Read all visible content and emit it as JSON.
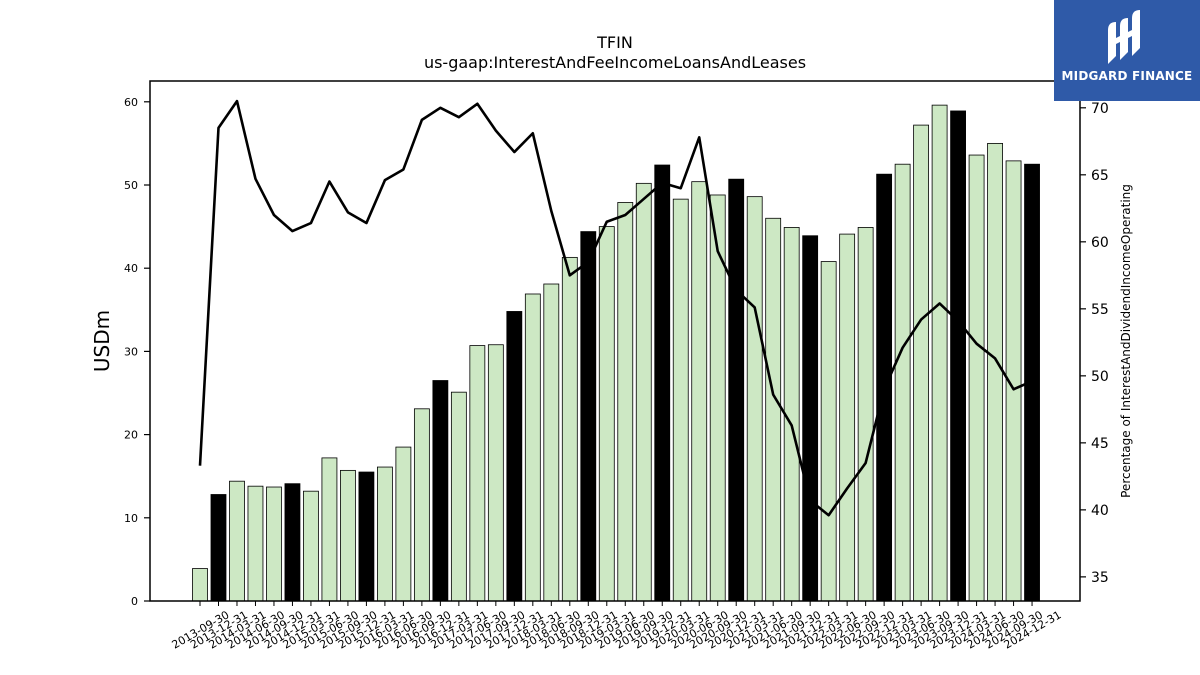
{
  "chart_data": {
    "type": "bar",
    "title": "TFIN",
    "subtitle": "us-gaap:InterestAndFeeIncomeLoansAndLeases",
    "ylabel": "USDm",
    "y2label": "Percentage of InterestAndDividendIncomeOperating",
    "ylim": [
      0,
      62.5
    ],
    "y2lim": [
      33.2,
      72.0
    ],
    "yticks": [
      0,
      10,
      20,
      30,
      40,
      50,
      60
    ],
    "y2ticks": [
      35,
      40,
      45,
      50,
      55,
      60,
      65,
      70
    ],
    "colors": {
      "quarter_bar": "#cde8c4",
      "annual_bar": "#000000",
      "line": "#000000"
    },
    "categories": [
      "2013-09-30",
      "2013-12-31",
      "2014-03-31",
      "2014-06-30",
      "2014-09-30",
      "2014-12-31",
      "2015-03-31",
      "2015-06-30",
      "2015-09-30",
      "2015-12-31",
      "2016-03-31",
      "2016-06-30",
      "2016-09-30",
      "2016-12-31",
      "2017-03-31",
      "2017-06-30",
      "2017-09-30",
      "2017-12-31",
      "2018-03-31",
      "2018-06-30",
      "2018-09-30",
      "2018-12-31",
      "2019-03-31",
      "2019-06-30",
      "2019-09-30",
      "2019-12-31",
      "2020-03-31",
      "2020-06-30",
      "2020-09-30",
      "2020-12-31",
      "2021-03-31",
      "2021-06-30",
      "2021-09-30",
      "2021-12-31",
      "2022-03-31",
      "2022-06-30",
      "2022-09-30",
      "2022-12-31",
      "2023-03-31",
      "2023-06-30",
      "2023-09-30",
      "2023-12-31",
      "2024-03-31",
      "2024-06-30",
      "2024-09-30",
      "2024-12-31"
    ],
    "values": [
      3.9,
      12.8,
      14.4,
      13.8,
      13.7,
      14.1,
      13.2,
      17.2,
      15.7,
      15.5,
      16.1,
      18.5,
      23.1,
      26.5,
      25.1,
      30.7,
      30.8,
      34.8,
      36.9,
      38.1,
      41.3,
      44.4,
      45.0,
      47.9,
      50.2,
      52.4,
      48.3,
      50.4,
      48.8,
      50.7,
      48.6,
      46.0,
      44.9,
      43.9,
      40.8,
      44.1,
      44.9,
      51.3,
      52.5,
      57.2,
      59.6,
      58.9,
      53.6,
      55.0,
      52.9,
      52.5
    ],
    "annual": [
      false,
      true,
      false,
      false,
      false,
      true,
      false,
      false,
      false,
      true,
      false,
      false,
      false,
      true,
      false,
      false,
      false,
      true,
      false,
      false,
      false,
      true,
      false,
      false,
      false,
      true,
      false,
      false,
      false,
      true,
      false,
      false,
      false,
      true,
      false,
      false,
      false,
      true,
      false,
      false,
      false,
      true,
      false,
      false,
      false,
      true
    ],
    "line_values": [
      43.3,
      68.5,
      70.5,
      64.7,
      62.0,
      60.8,
      61.4,
      64.5,
      62.2,
      61.4,
      64.6,
      65.4,
      69.1,
      70.0,
      69.3,
      70.3,
      68.3,
      66.7,
      68.1,
      62.3,
      57.5,
      58.5,
      61.5,
      62.0,
      63.2,
      64.4,
      64.0,
      67.8,
      59.3,
      56.4,
      55.1,
      48.6,
      46.3,
      40.7,
      39.6,
      41.6,
      43.5,
      49.0,
      52.1,
      54.2,
      55.4,
      54.1,
      52.4,
      51.3,
      49.0,
      49.6
    ]
  },
  "brand": {
    "name": "MIDGARD FINANCE",
    "logo_icon": "midgard-m-icon"
  }
}
